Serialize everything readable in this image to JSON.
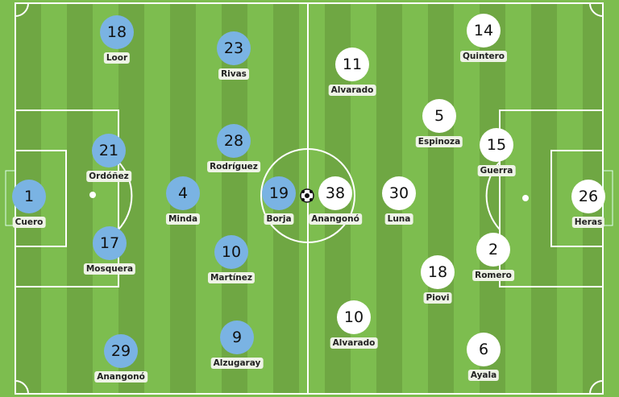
{
  "colors": {
    "home": "#7ab3e3",
    "away": "#ffffff",
    "pitch_light": "#7dbd4f",
    "pitch_dark": "#6fa743"
  },
  "ball_icon": "soccer-ball-icon",
  "home": [
    {
      "number": "1",
      "name": "Cuero"
    },
    {
      "number": "18",
      "name": "Loor"
    },
    {
      "number": "21",
      "name": "Ordóñez"
    },
    {
      "number": "17",
      "name": "Mosquera"
    },
    {
      "number": "29",
      "name": "Anangonó"
    },
    {
      "number": "4",
      "name": "Minda"
    },
    {
      "number": "23",
      "name": "Rivas"
    },
    {
      "number": "28",
      "name": "Rodríguez"
    },
    {
      "number": "10",
      "name": "Martínez"
    },
    {
      "number": "9",
      "name": "Alzugaray"
    },
    {
      "number": "19",
      "name": "Borja"
    }
  ],
  "away": [
    {
      "number": "26",
      "name": "Heras"
    },
    {
      "number": "14",
      "name": "Quintero"
    },
    {
      "number": "15",
      "name": "Guerra"
    },
    {
      "number": "2",
      "name": "Romero"
    },
    {
      "number": "6",
      "name": "Ayala"
    },
    {
      "number": "5",
      "name": "Espinoza"
    },
    {
      "number": "18",
      "name": "Piovi"
    },
    {
      "number": "11",
      "name": "Alvarado"
    },
    {
      "number": "10",
      "name": "Alvarado"
    },
    {
      "number": "30",
      "name": "Luna"
    },
    {
      "number": "38",
      "name": "Anangonó"
    }
  ]
}
